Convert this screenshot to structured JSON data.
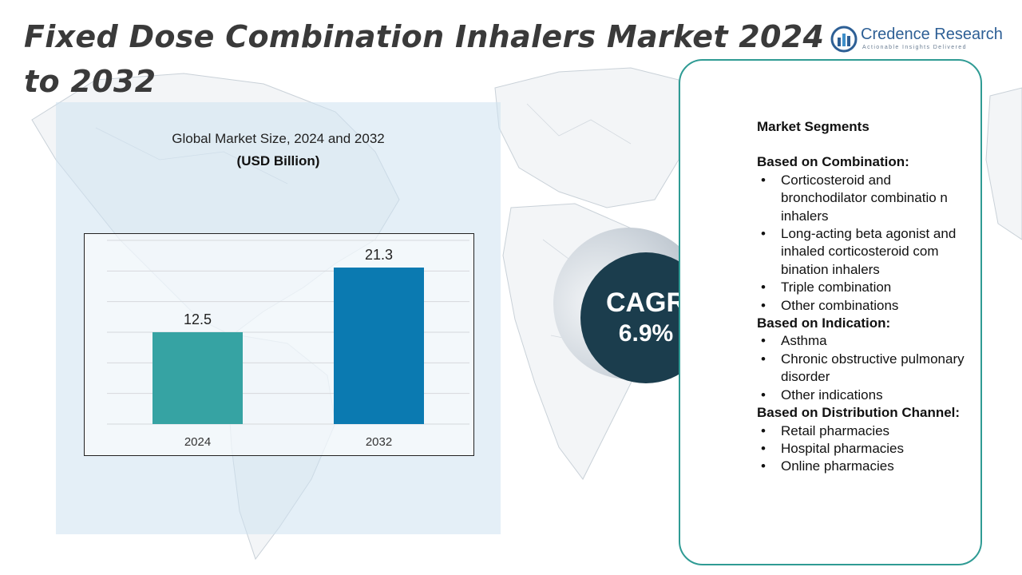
{
  "title": "Fixed Dose Combination Inhalers Market 2024 to 2032",
  "logo": {
    "name": "Credence Research",
    "tagline": "Actionable Insights Delivered",
    "icon": "credence-logo-icon"
  },
  "chart": {
    "title": "Global Market Size,  2024 and 2032",
    "unit": "(USD Billion)"
  },
  "chart_data": {
    "type": "bar",
    "title": "Global Market Size,  2024 and 2032",
    "ylabel": "(USD Billion)",
    "categories": [
      "2024",
      "2032"
    ],
    "values": [
      12.5,
      21.3
    ],
    "value_labels": [
      "12.5",
      "21.3"
    ],
    "colors": [
      "#36a3a3",
      "#0b7ab1"
    ],
    "ylim": [
      0,
      25
    ],
    "grid": true,
    "legend": "none"
  },
  "cagr": {
    "label": "CAGR",
    "value": "6.9%"
  },
  "segments": {
    "heading": "Market Segments",
    "groups": [
      {
        "title": "Based on Combination:",
        "items": [
          "Corticosteroid and bronchodilator combinatio n inhalers",
          "Long-acting beta agonist and inhaled corticosteroid com bination inhalers",
          "Triple combination",
          "Other combinations"
        ]
      },
      {
        "title": "Based on Indication:",
        "items": [
          "Asthma",
          "Chronic obstructive pulmonary disorder",
          "Other indications"
        ]
      },
      {
        "title": "Based on Distribution Channel:",
        "items": [
          "Retail pharmacies",
          "Hospital pharmacies",
          "Online pharmacies"
        ]
      }
    ]
  },
  "colors": {
    "title_text": "#3a3a3a",
    "panel_bg": "#dbe9f4",
    "cagr_circle": "#1b3d4d",
    "segments_border": "#2f9b94",
    "logo_blue": "#2d5f95"
  }
}
